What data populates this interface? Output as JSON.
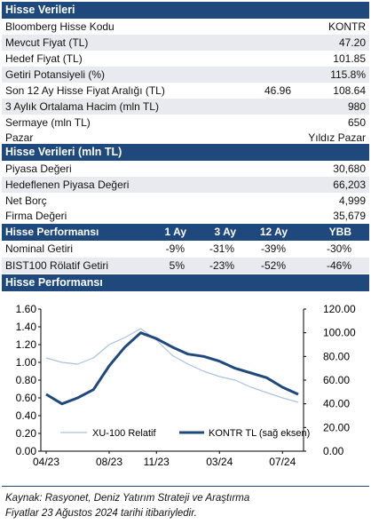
{
  "stock_data": {
    "title": "Hisse Verileri",
    "rows": [
      {
        "label": "Bloomberg Hisse Kodu",
        "value": "KONTR"
      },
      {
        "label": "Mevcut Fiyat (TL)",
        "value": "47.20"
      },
      {
        "label": "Hedef Fiyat (TL)",
        "value": "101.85"
      },
      {
        "label": "Getiri Potansiyeli (%)",
        "value": "115.8%"
      },
      {
        "label": "Son 12 Ay Hisse Fiyat Aralığı (TL)",
        "low": "46.96",
        "value": "108.64"
      },
      {
        "label": "3 Aylık Ortalama Hacim (mln TL)",
        "value": "980"
      },
      {
        "label": "Sermaye (mln TL)",
        "value": "650"
      },
      {
        "label": "Pazar",
        "value": "Yıldız Pazar"
      }
    ]
  },
  "stock_data_mln": {
    "title": "Hisse Verileri (mln TL)",
    "rows": [
      {
        "label": "Piyasa Değeri",
        "value": "30,680"
      },
      {
        "label": "Hedeflenen Piyasa Değeri",
        "value": "66,203"
      },
      {
        "label": "Net Borç",
        "value": "4,999"
      },
      {
        "label": "Firma Değeri",
        "value": "35,679"
      }
    ]
  },
  "performance": {
    "title": "Hisse Performansı",
    "columns": [
      "1 Ay",
      "3 Ay",
      "12 Ay",
      "YBB"
    ],
    "rows": [
      {
        "label": "Nominal Getiri",
        "values": [
          "-9%",
          "-31%",
          "-39%",
          "-30%"
        ]
      },
      {
        "label": "BIST100 Rölatif Getiri",
        "values": [
          "5%",
          "-23%",
          "-52%",
          "-46%"
        ]
      }
    ]
  },
  "chart_section": {
    "title": "Hisse Performansı"
  },
  "colors": {
    "header": "#1f497d",
    "relative_line": "#a9c2e0",
    "price_line": "#1f497d"
  },
  "chart_data": {
    "type": "line",
    "x": [
      "04/23",
      "05/23",
      "06/23",
      "07/23",
      "08/23",
      "09/23",
      "10/23",
      "11/23",
      "12/23",
      "01/24",
      "02/24",
      "03/24",
      "04/24",
      "05/24",
      "06/24",
      "07/24",
      "08/24"
    ],
    "x_tick_labels": [
      "04/23",
      "08/23",
      "11/23",
      "03/24",
      "07/24"
    ],
    "y_left_ticks": [
      "0.00",
      "0.20",
      "0.40",
      "0.60",
      "0.80",
      "1.00",
      "1.20",
      "1.40",
      "1.60"
    ],
    "y_right_ticks": [
      "0.00",
      "20.00",
      "40.00",
      "60.00",
      "80.00",
      "100.00",
      "120.00"
    ],
    "y_left_range": [
      0,
      1.6
    ],
    "y_right_range": [
      0,
      120
    ],
    "series": [
      {
        "name": "XU-100 Relatif",
        "axis": "left",
        "values": [
          1.05,
          1.0,
          0.98,
          1.05,
          1.2,
          1.28,
          1.38,
          1.25,
          1.08,
          0.98,
          0.9,
          0.84,
          0.8,
          0.72,
          0.66,
          0.6,
          0.55
        ]
      },
      {
        "name": "KONTR TL (sağ eksen)",
        "axis": "right",
        "values": [
          48,
          40,
          45,
          52,
          72,
          88,
          100,
          95,
          88,
          82,
          80,
          76,
          70,
          66,
          62,
          54,
          48
        ]
      }
    ],
    "legend": "bottom"
  },
  "footer": {
    "source": "Kaynak: Rasyonet, Deniz Yatırım Strateji ve Araştırma",
    "date": "Fiyatlar 23 Ağustos 2024 tarihi itibariyledir."
  }
}
